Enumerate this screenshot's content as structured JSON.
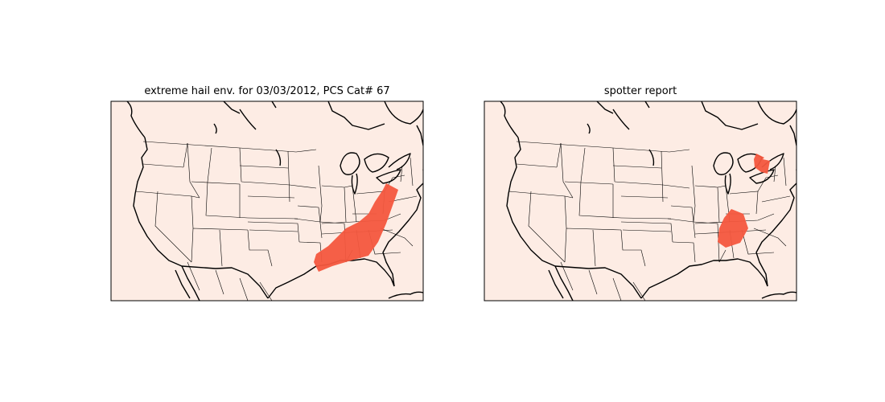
{
  "panels": {
    "left": {
      "title": "extreme hail env. for 03/03/2012, PCS Cat# 67"
    },
    "right": {
      "title": "spotter report"
    }
  },
  "colors": {
    "map_background": "#fdece4",
    "region_fill": "#f4573e",
    "frame": "#000000",
    "coastline": "#000000",
    "state_lines": "#000000"
  }
}
